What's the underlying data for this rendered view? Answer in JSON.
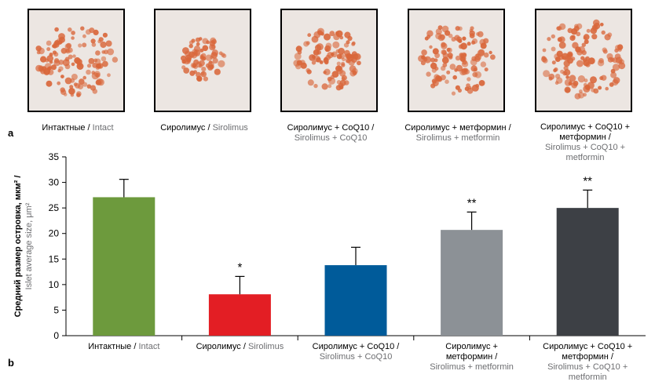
{
  "panel_a_label": "a",
  "panel_b_label": "b",
  "images": [
    {
      "ru": "Интактные",
      "en": "Intact",
      "ru2": "",
      "en2": ""
    },
    {
      "ru": "Сиролимус",
      "en": "Sirolimus",
      "ru2": "",
      "en2": ""
    },
    {
      "ru": "Сиролимус + CoQ10 /",
      "en": "",
      "ru2": "",
      "en2": "Sirolimus + CoQ10"
    },
    {
      "ru": "Сиролимус + метформин /",
      "en": "",
      "ru2": "",
      "en2": "Sirolimus + metformin"
    },
    {
      "ru": "Сиролимус + CoQ10 +",
      "en": "",
      "ru2": "метформин /",
      "en2": "Sirolimus + CoQ10 + metformin"
    }
  ],
  "colors": {
    "intact": "#6d9a3d",
    "sirolimus": "#e31e24",
    "sirolimus_coq10": "#005b9a",
    "sirolimus_metformin": "#8c9196",
    "sirolimus_coq10_metformin": "#3d4045",
    "stain": "#d9673b",
    "english_text": "#6d6e71"
  },
  "chart_data": {
    "type": "bar",
    "ylabel_ru": "Средний размер островка, мкм² /",
    "ylabel_en": "Islet average size, μm²",
    "ylim": [
      0,
      35
    ],
    "yticks": [
      0,
      5,
      10,
      15,
      20,
      25,
      30,
      35
    ],
    "categories": [
      {
        "ru": "Интактные /",
        "en": "Intact",
        "lines": [
          [
            "Интактные / ",
            "Intact"
          ]
        ]
      },
      {
        "ru": "Сиролимус /",
        "en": "Sirolimus",
        "lines": [
          [
            "Сиролимус / ",
            "Sirolimus"
          ]
        ]
      },
      {
        "ru": "Сиролимус + CoQ10 /",
        "en": "Sirolimus + CoQ10",
        "lines": [
          [
            "Сиролимус + CoQ10 /",
            ""
          ],
          [
            "",
            "Sirolimus + CoQ10"
          ]
        ]
      },
      {
        "ru": "Сиролимус + метформин /",
        "en": "Sirolimus + metformin",
        "lines": [
          [
            "Сиролимус +",
            ""
          ],
          [
            "метформин /",
            ""
          ],
          [
            "",
            "Sirolimus + metformin"
          ]
        ]
      },
      {
        "ru": "Сиролимус + CoQ10 + метформин /",
        "en": "Sirolimus + CoQ10 + metformin",
        "lines": [
          [
            "Сиролимус + CoQ10 +",
            ""
          ],
          [
            "метформин /",
            ""
          ],
          [
            "",
            "Sirolimus + CoQ10 +"
          ],
          [
            "",
            "metformin"
          ]
        ]
      }
    ],
    "values": [
      27.1,
      8.1,
      13.8,
      20.7,
      25.0
    ],
    "errors": [
      3.5,
      3.5,
      3.5,
      3.5,
      3.5
    ],
    "significance": [
      "",
      "*",
      "",
      "**",
      "**"
    ],
    "bar_colors": [
      "#6d9a3d",
      "#e31e24",
      "#005b9a",
      "#8c9196",
      "#3d4045"
    ]
  }
}
